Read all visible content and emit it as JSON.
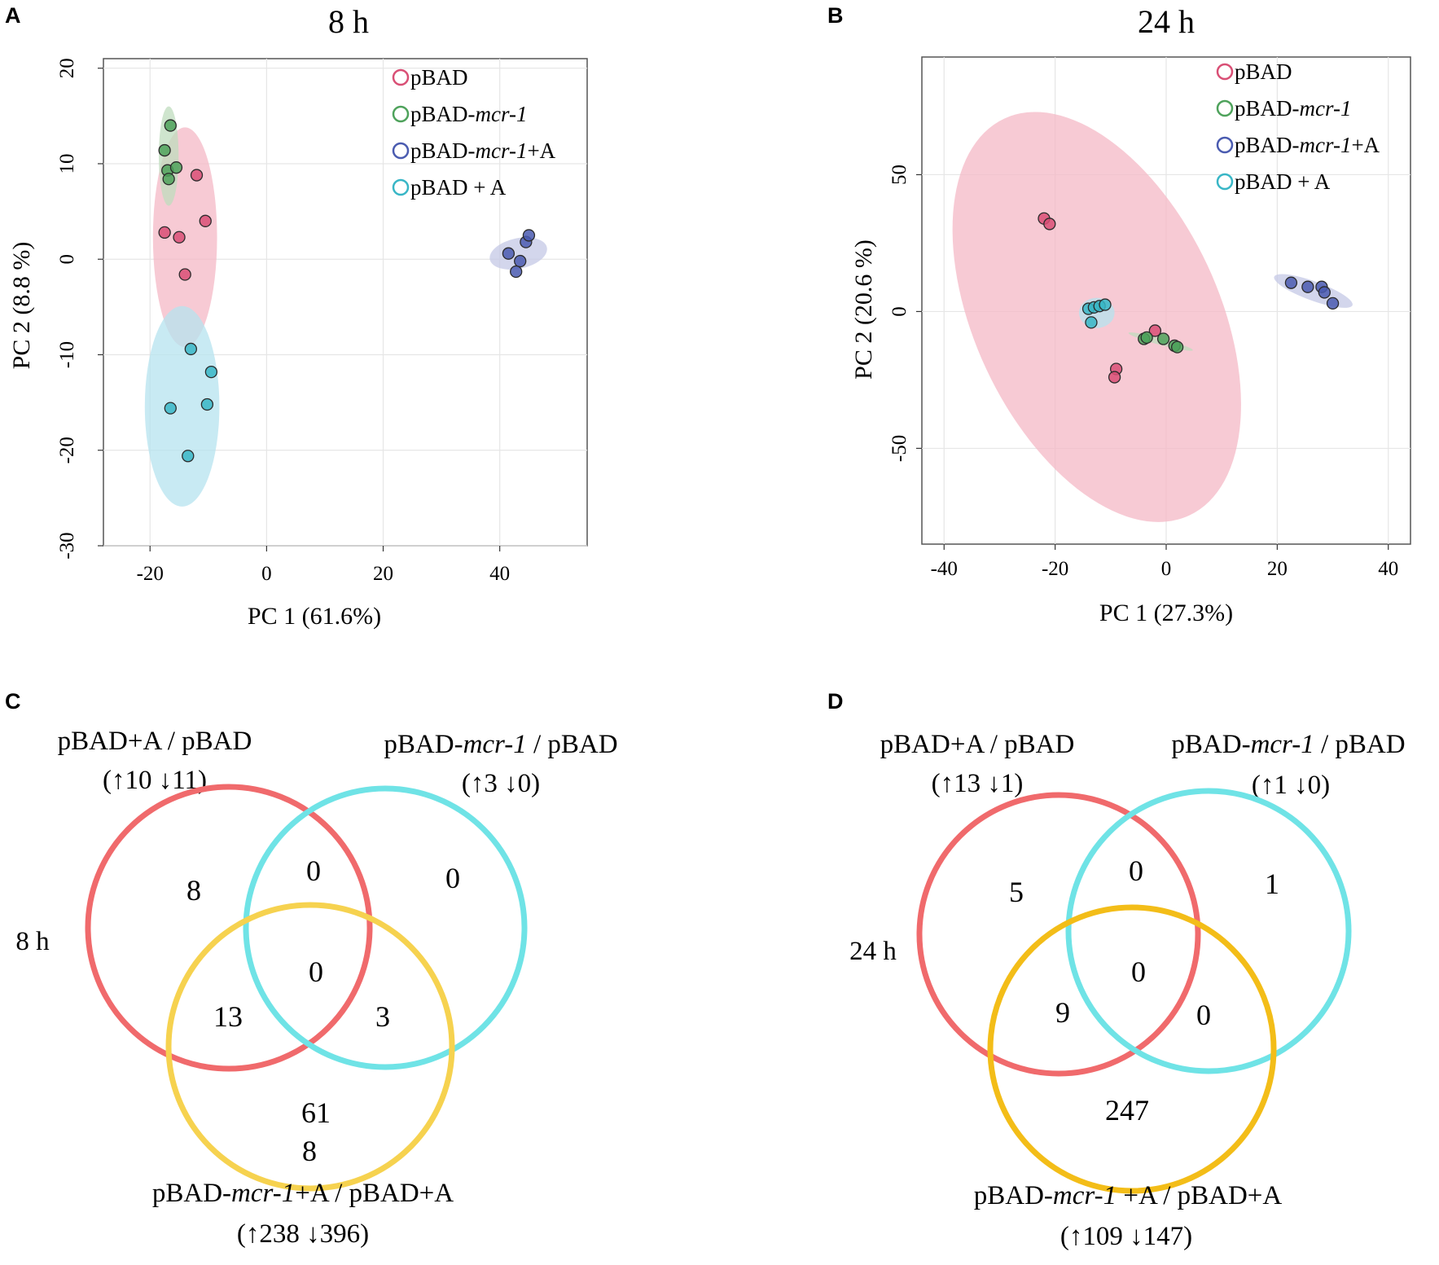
{
  "panels": {
    "A": "A",
    "B": "B",
    "C": "C",
    "D": "D"
  },
  "chart_data": [
    {
      "type": "scatter",
      "panel": "A",
      "title": "8 h",
      "xlabel": "PC 1 (61.6%)",
      "ylabel": "PC 2 (8.8 %)",
      "xlim": [
        -28,
        55
      ],
      "ylim": [
        -30,
        21
      ],
      "xticks": [
        "-20",
        "0",
        "20",
        "40"
      ],
      "yticks": [
        "20",
        "10",
        "0",
        "-10",
        "-20",
        "-30"
      ],
      "grid": true,
      "legend_position": "top-right",
      "series": [
        {
          "name": "pBAD",
          "color": "#d94f75",
          "fill": "#f4b8c6",
          "points": [
            [
              -17.5,
              2.8
            ],
            [
              -15,
              2.3
            ],
            [
              -12,
              8.8
            ],
            [
              -10.5,
              4
            ],
            [
              -14,
              -1.6
            ]
          ],
          "ellipse": {
            "cx": -14,
            "cy": 2.3,
            "rx": 5.5,
            "ry": 11.5,
            "angle": 0
          }
        },
        {
          "name": "pBAD-mcr-1",
          "color": "#4ea25b",
          "fill": "#bfdcbd",
          "points": [
            [
              -16.5,
              14
            ],
            [
              -17.5,
              11.4
            ],
            [
              -17,
              9.3
            ],
            [
              -15.5,
              9.6
            ],
            [
              -16.8,
              8.4
            ]
          ],
          "ellipse": {
            "cx": -16.8,
            "cy": 10.8,
            "rx": 1.7,
            "ry": 5.2,
            "angle": 0
          }
        },
        {
          "name": "pBAD-mcr-1+A",
          "color": "#4a5bb0",
          "fill": "#c4c8e6",
          "points": [
            [
              41.5,
              0.6
            ],
            [
              44.5,
              1.8
            ],
            [
              45,
              2.5
            ],
            [
              43.5,
              -0.2
            ],
            [
              42.8,
              -1.3
            ]
          ],
          "ellipse": {
            "cx": 43.2,
            "cy": 0.6,
            "rx": 5.0,
            "ry": 1.6,
            "angle": -12
          }
        },
        {
          "name": "pBAD + A",
          "color": "#38b6c6",
          "fill": "#b6e3ef",
          "points": [
            [
              -13,
              -9.4
            ],
            [
              -9.5,
              -11.8
            ],
            [
              -16.5,
              -15.6
            ],
            [
              -10.2,
              -15.2
            ],
            [
              -13.5,
              -20.6
            ]
          ],
          "ellipse": {
            "cx": -14.5,
            "cy": -15.4,
            "rx": 6.4,
            "ry": 10.5,
            "angle": 0
          }
        }
      ]
    },
    {
      "type": "scatter",
      "panel": "B",
      "title": "24 h",
      "xlabel": "PC 1 (27.3%)",
      "ylabel": "PC 2 (20.6 %)",
      "xlim": [
        -44,
        44
      ],
      "ylim": [
        -85,
        93
      ],
      "xticks": [
        "-40",
        "-20",
        "0",
        "20",
        "40"
      ],
      "yticks": [
        "50",
        "0",
        "-50"
      ],
      "grid": true,
      "legend_position": "top-right",
      "series": [
        {
          "name": "pBAD",
          "color": "#d94f75",
          "fill": "#f4b8c6",
          "points": [
            [
              -22,
              34
            ],
            [
              -21,
              32
            ],
            [
              -2,
              -7
            ],
            [
              -9,
              -21
            ],
            [
              -9.3,
              -24
            ]
          ],
          "ellipse": {
            "cx": -12.5,
            "cy": -2,
            "rx": 22,
            "ry": 80,
            "angle": -25
          }
        },
        {
          "name": "pBAD-mcr-1",
          "color": "#4ea25b",
          "fill": "#bfdcbd",
          "points": [
            [
              -4,
              -10
            ],
            [
              -3.5,
              -9.5
            ],
            [
              -0.5,
              -10
            ],
            [
              1.5,
              -12.5
            ],
            [
              2,
              -13
            ]
          ],
          "ellipse": {
            "cx": -1,
            "cy": -11,
            "rx": 6,
            "ry": 1.2,
            "angle": 15
          }
        },
        {
          "name": "pBAD-mcr-1+A",
          "color": "#4a5bb0",
          "fill": "#c4c8e6",
          "points": [
            [
              22.5,
              10.5
            ],
            [
              25.5,
              9
            ],
            [
              28,
              9
            ],
            [
              28.5,
              7
            ],
            [
              30,
              3
            ]
          ],
          "ellipse": {
            "cx": 26.5,
            "cy": 7.5,
            "rx": 7.5,
            "ry": 3.5,
            "angle": 20
          }
        },
        {
          "name": "pBAD + A",
          "color": "#38b6c6",
          "fill": "#b6e3ef",
          "points": [
            [
              -14,
              1
            ],
            [
              -13,
              1.5
            ],
            [
              -12,
              2
            ],
            [
              -11,
              2.5
            ],
            [
              -13.5,
              -4
            ]
          ],
          "ellipse": {
            "cx": -12.5,
            "cy": -0.5,
            "rx": 3.2,
            "ry": 5.5,
            "angle": 0
          }
        }
      ]
    }
  ],
  "venn": {
    "C": {
      "side_label": "8 h",
      "set1": {
        "name": "pBAD+A / pBAD",
        "updown": "(↑10  ↓11)"
      },
      "set2": {
        "name_a": "pBAD-",
        "name_i": "mcr-1",
        "name_b": " / pBAD",
        "updown": "(↑3  ↓0)"
      },
      "set3": {
        "name_a": "pBAD-",
        "name_i": "mcr-1",
        "name_b": "+A / pBAD+A",
        "updown": "(↑238 ↓396)"
      },
      "regions": {
        "only1": "8",
        "only2": "0",
        "r12": "0",
        "r123": "0",
        "r13": "13",
        "r23": "3",
        "only3_a": "61",
        "only3_b": "8"
      }
    },
    "D": {
      "side_label": "24 h",
      "set1": {
        "name": "pBAD+A / pBAD",
        "updown": "(↑13 ↓1)"
      },
      "set2": {
        "name_a": "pBAD-",
        "name_i": "mcr-1",
        "name_b": " / pBAD",
        "updown": "(↑1  ↓0)"
      },
      "set3": {
        "name_a": "pBAD-",
        "name_i": "mcr-1",
        "name_b": " +A / pBAD+A",
        "updown": "(↑109 ↓147)"
      },
      "regions": {
        "only1": "5",
        "only2": "1",
        "r12": "0",
        "r123": "0",
        "r13": "9",
        "r23": "0",
        "only3": "247"
      }
    }
  },
  "colors": {
    "venn_red": "#f06a6c",
    "venn_cyan": "#6fe3e6",
    "venn_yellow_c": "#f6d24f",
    "venn_yellow_d": "#f3bd18"
  }
}
